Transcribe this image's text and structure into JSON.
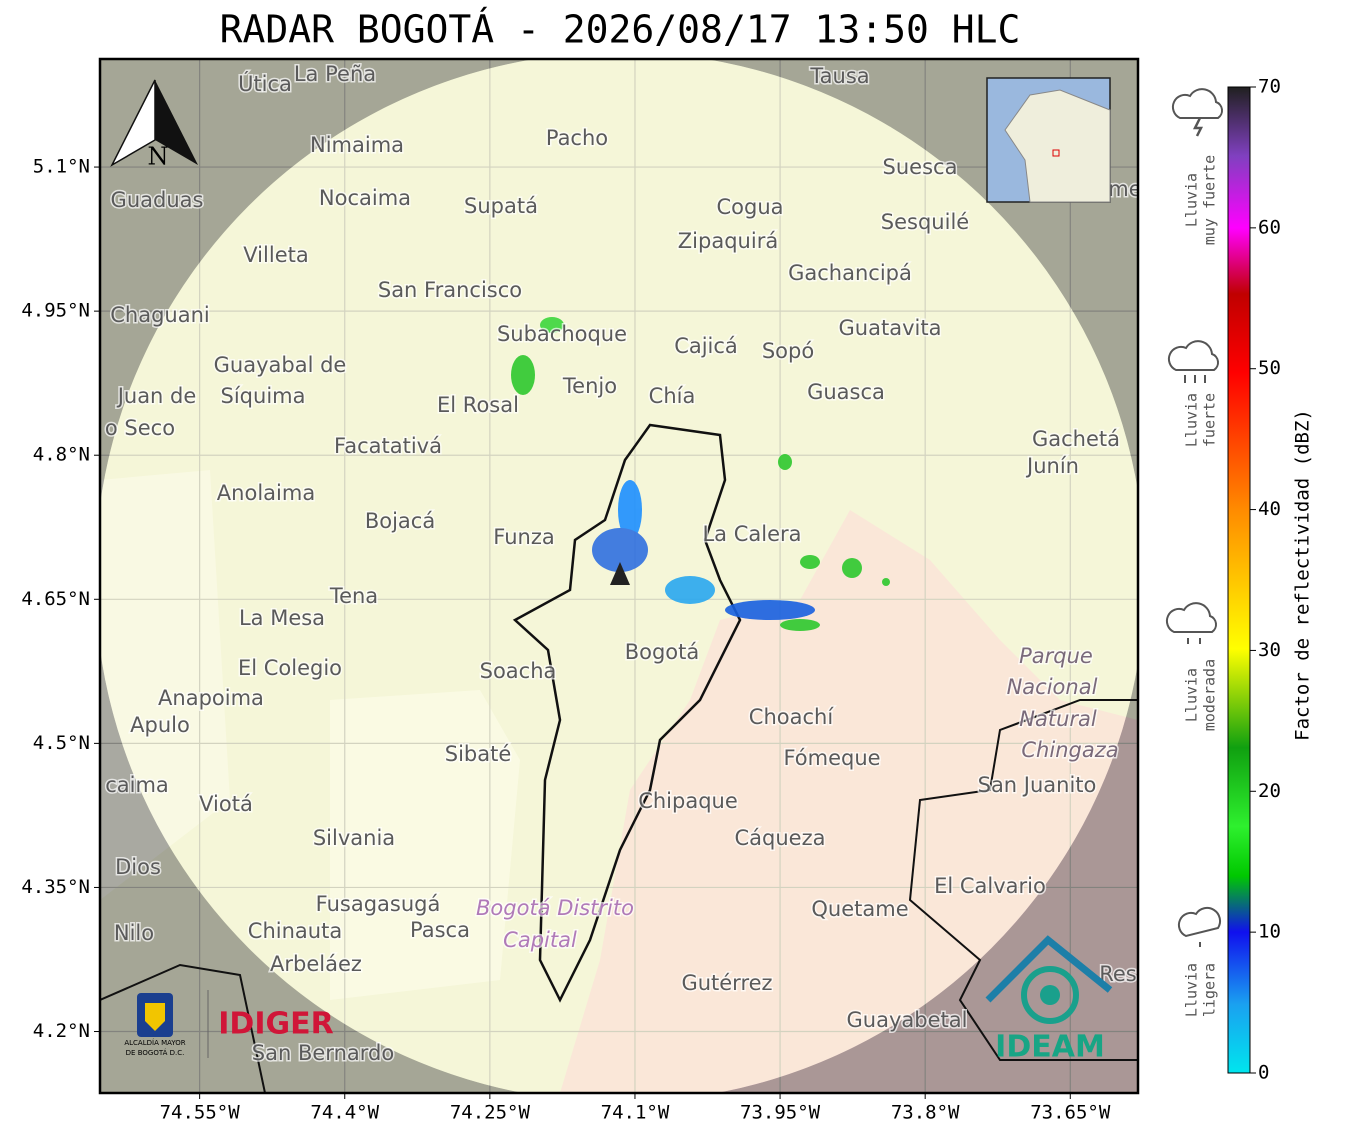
{
  "title": "RADAR BOGOTÁ - 2026/08/17 13:50 HLC",
  "xticks": [
    {
      "value": -74.55,
      "label": "74.55°W"
    },
    {
      "value": -74.4,
      "label": "74.4°W"
    },
    {
      "value": -74.25,
      "label": "74.25°W"
    },
    {
      "value": -74.1,
      "label": "74.1°W"
    },
    {
      "value": -73.95,
      "label": "73.95°W"
    },
    {
      "value": -73.8,
      "label": "73.8°W"
    },
    {
      "value": -73.65,
      "label": "73.65°W"
    }
  ],
  "yticks": [
    {
      "value": 5.1,
      "label": "5.1°N"
    },
    {
      "value": 4.95,
      "label": "4.95°N"
    },
    {
      "value": 4.8,
      "label": "4.8°N"
    },
    {
      "value": 4.65,
      "label": "4.65°N"
    },
    {
      "value": 4.5,
      "label": "4.5°N"
    },
    {
      "value": 4.35,
      "label": "4.35°N"
    },
    {
      "value": 4.2,
      "label": "4.2°N"
    }
  ],
  "xlim": [
    -74.653,
    -73.58
  ],
  "ylim": [
    4.136,
    5.2125
  ],
  "north_label": "N",
  "places": [
    "Útica",
    "La Peña",
    "Tausa",
    "Pacho",
    "Nimaima",
    "Guaduas",
    "Nocaima",
    "Supatá",
    "Cogua",
    "Suesca",
    "Sesquilé",
    "Zipaquirá",
    "Villeta",
    "Gachancipá",
    "San Francisco",
    "Chaguani",
    "Subachoque",
    "Cajicá",
    "Sopó",
    "Guatavita",
    "Guayabal de",
    "Síquima",
    "Tenjo",
    "Chía",
    "Guasca",
    "El Rosal",
    "Juan de",
    "o Seco",
    "Facatativá",
    "Gachetá",
    "Junín",
    "Anolaima",
    "Bojacá",
    "Funza",
    "La Calera",
    "Tena",
    "La Mesa",
    "El Colegio",
    "Soacha",
    "Bogotá",
    "Parque",
    "Nacional",
    "Natural",
    "Chingaza",
    "Anapoima",
    "Apulo",
    "Choachí",
    "Fómeque",
    "Sibaté",
    "San Juanito",
    "caima",
    "Viotá",
    "Chipaque",
    "Silvania",
    "Cáqueza",
    "Dios",
    "El Calvario",
    "Fusagasugá",
    "Bogotá Distrito",
    "Capital",
    "Quetame",
    "Nilo",
    "Chinauta",
    "Pasca",
    "Arbeláez",
    "Gutérrez",
    "Guayabetal",
    "San Bernardo",
    "Res",
    "me"
  ],
  "logos": {
    "alcaldia": "ALCALDÍA MAYOR",
    "alcaldia2": "DE BOGOTÁ D.C.",
    "idiger": "IDIGER",
    "ideam": "IDEAM"
  },
  "colorbar": {
    "label": "Factor de reflectividad (dBZ)",
    "lim": [
      0,
      70
    ],
    "ticks": [
      0,
      10,
      20,
      30,
      40,
      50,
      60,
      70
    ]
  },
  "legend": [
    {
      "lines": [
        "Lluvia",
        "muy fuerte"
      ]
    },
    {
      "lines": [
        "Lluvia",
        "fuerte"
      ]
    },
    {
      "lines": [
        "Lluvia",
        "moderada"
      ]
    },
    {
      "lines": [
        "Lluvia",
        "ligera"
      ]
    }
  ]
}
